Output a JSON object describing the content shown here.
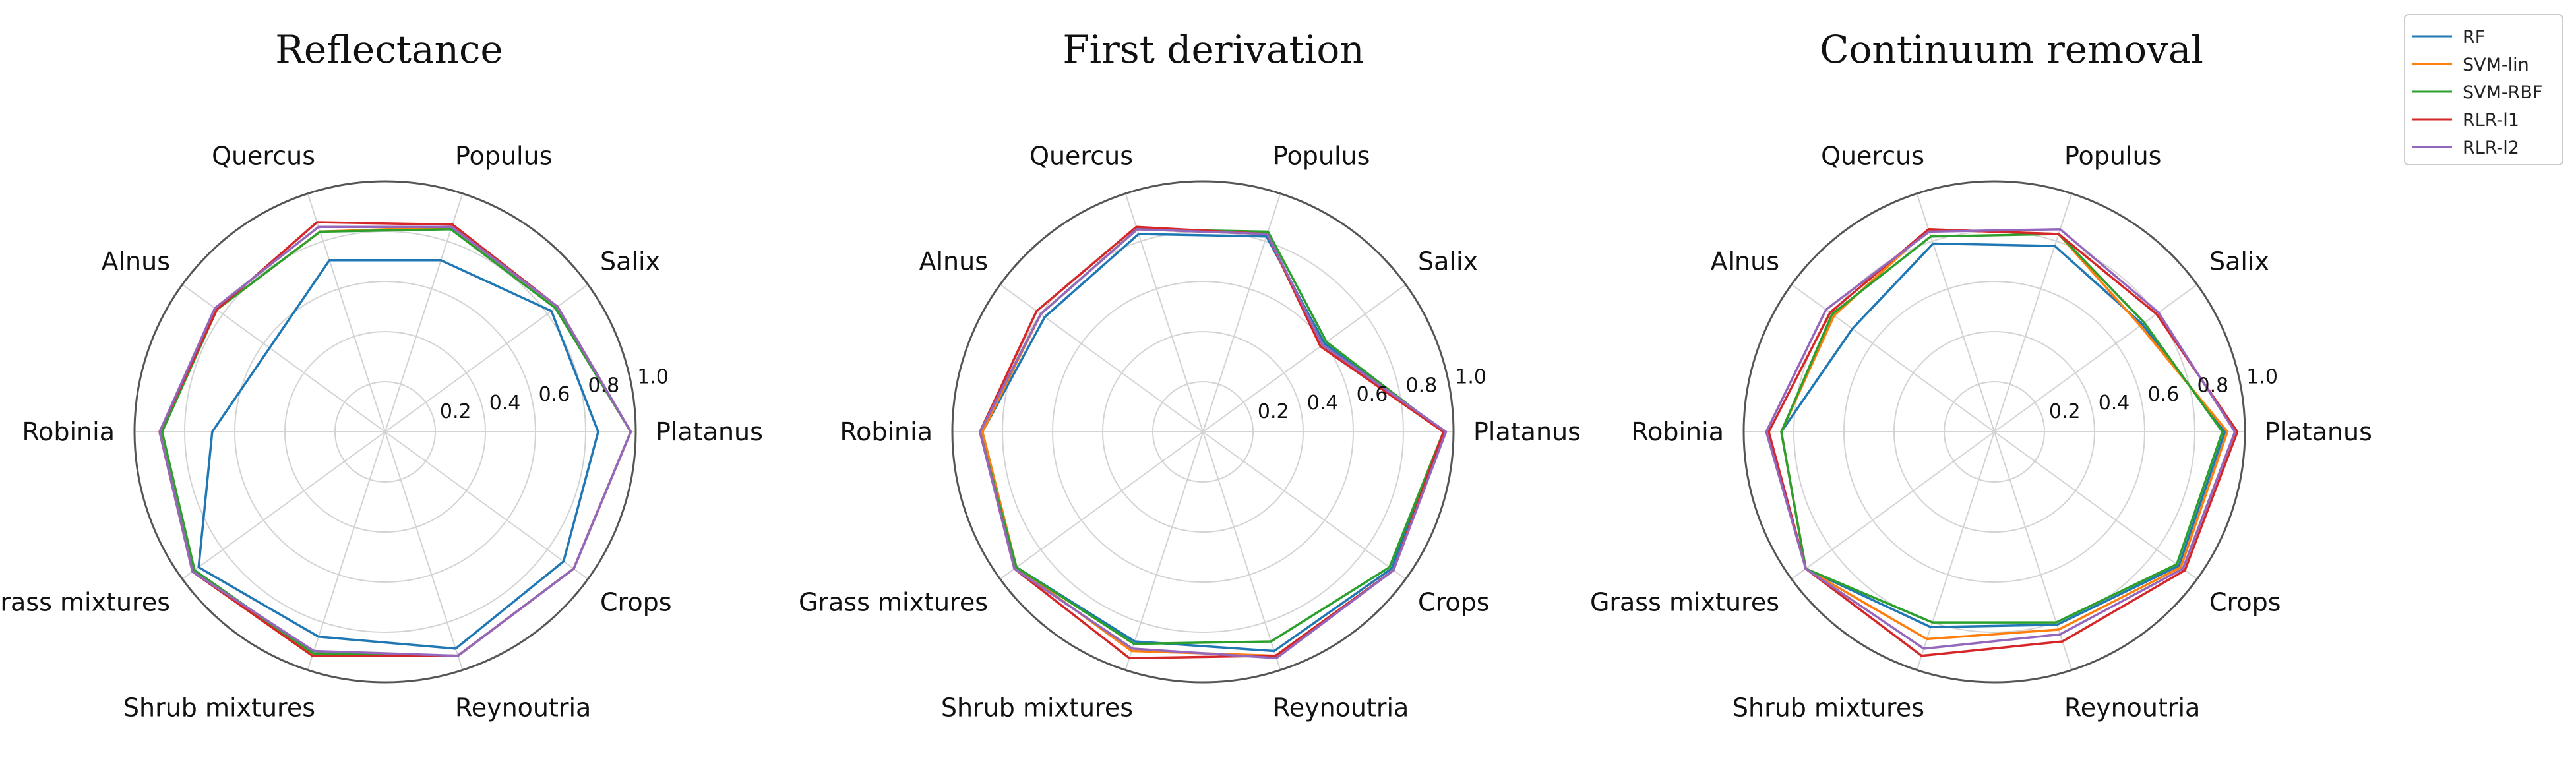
{
  "legend": {
    "position": "top-right",
    "entries": [
      {
        "label": "RF",
        "color": "#1f77b4"
      },
      {
        "label": "SVM-lin",
        "color": "#ff7f0e"
      },
      {
        "label": "SVM-RBF",
        "color": "#2ca02c"
      },
      {
        "label": "RLR-l1",
        "color": "#d62728"
      },
      {
        "label": "RLR-l2",
        "color": "#9467bd"
      }
    ]
  },
  "chart_data": [
    {
      "type": "radar",
      "title": "Reflectance",
      "categories": [
        "Platanus",
        "Salix",
        "Populus",
        "Quercus",
        "Alnus",
        "Robinia",
        "Grass mixtures",
        "Shrub mixtures",
        "Reynoutria",
        "Crops"
      ],
      "rlim": [
        0,
        1.0
      ],
      "rticks": [
        0.2,
        0.4,
        0.6,
        0.8,
        1.0
      ],
      "rtick_labels": [
        "0.2",
        "0.4",
        "0.6",
        "0.8",
        "1.0"
      ],
      "grid": true,
      "series": [
        {
          "name": "RF",
          "color": "#1f77b4",
          "values": [
            0.85,
            0.82,
            0.72,
            0.72,
            0.57,
            0.69,
            0.92,
            0.86,
            0.91,
            0.88
          ]
        },
        {
          "name": "SVM-lin",
          "color": "#ff7f0e",
          "values": [
            0.98,
            0.85,
            0.86,
            0.84,
            0.83,
            0.9,
            0.95,
            0.93,
            0.94,
            0.93
          ]
        },
        {
          "name": "SVM-RBF",
          "color": "#2ca02c",
          "values": [
            0.98,
            0.84,
            0.85,
            0.84,
            0.83,
            0.89,
            0.94,
            0.93,
            0.94,
            0.93
          ]
        },
        {
          "name": "RLR-l1",
          "color": "#d62728",
          "values": [
            0.98,
            0.85,
            0.87,
            0.88,
            0.83,
            0.9,
            0.95,
            0.94,
            0.94,
            0.93
          ]
        },
        {
          "name": "RLR-l2",
          "color": "#9467bd",
          "values": [
            0.98,
            0.85,
            0.86,
            0.86,
            0.84,
            0.9,
            0.95,
            0.92,
            0.94,
            0.93
          ]
        }
      ]
    },
    {
      "type": "radar",
      "title": "First derivation",
      "categories": [
        "Platanus",
        "Salix",
        "Populus",
        "Quercus",
        "Alnus",
        "Robinia",
        "Grass mixtures",
        "Shrub mixtures",
        "Reynoutria",
        "Crops"
      ],
      "rlim": [
        0,
        1.0
      ],
      "rticks": [
        0.2,
        0.4,
        0.6,
        0.8,
        1.0
      ],
      "rtick_labels": [
        "0.2",
        "0.4",
        "0.6",
        "0.8",
        "1.0"
      ],
      "grid": true,
      "series": [
        {
          "name": "RF",
          "color": "#1f77b4",
          "values": [
            0.96,
            0.6,
            0.82,
            0.83,
            0.78,
            0.88,
            0.92,
            0.88,
            0.92,
            0.93
          ]
        },
        {
          "name": "SVM-lin",
          "color": "#ff7f0e",
          "values": [
            0.96,
            0.58,
            0.83,
            0.85,
            0.8,
            0.88,
            0.92,
            0.92,
            0.94,
            0.94
          ]
        },
        {
          "name": "SVM-RBF",
          "color": "#2ca02c",
          "values": [
            0.96,
            0.61,
            0.84,
            0.85,
            0.8,
            0.89,
            0.92,
            0.89,
            0.88,
            0.92
          ]
        },
        {
          "name": "RLR-l1",
          "color": "#d62728",
          "values": [
            0.96,
            0.58,
            0.83,
            0.86,
            0.82,
            0.89,
            0.93,
            0.95,
            0.94,
            0.94
          ]
        },
        {
          "name": "RLR-l2",
          "color": "#9467bd",
          "values": [
            0.97,
            0.59,
            0.83,
            0.85,
            0.8,
            0.89,
            0.93,
            0.91,
            0.95,
            0.94
          ]
        }
      ]
    },
    {
      "type": "radar",
      "title": "Continuum removal",
      "categories": [
        "Platanus",
        "Salix",
        "Populus",
        "Quercus",
        "Alnus",
        "Robinia",
        "Grass mixtures",
        "Shrub mixtures",
        "Reynoutria",
        "Crops"
      ],
      "rlim": [
        0,
        1.0
      ],
      "rticks": [
        0.2,
        0.4,
        0.6,
        0.8,
        1.0
      ],
      "rtick_labels": [
        "0.2",
        "0.4",
        "0.6",
        "0.8",
        "1.0"
      ],
      "grid": true,
      "series": [
        {
          "name": "RF",
          "color": "#1f77b4",
          "values": [
            0.92,
            0.73,
            0.78,
            0.79,
            0.7,
            0.85,
            0.93,
            0.82,
            0.81,
            0.91
          ]
        },
        {
          "name": "SVM-lin",
          "color": "#ff7f0e",
          "values": [
            0.93,
            0.72,
            0.83,
            0.85,
            0.79,
            0.85,
            0.93,
            0.87,
            0.83,
            0.92
          ]
        },
        {
          "name": "SVM-RBF",
          "color": "#2ca02c",
          "values": [
            0.91,
            0.74,
            0.83,
            0.82,
            0.8,
            0.85,
            0.93,
            0.8,
            0.8,
            0.9
          ]
        },
        {
          "name": "RLR-l1",
          "color": "#d62728",
          "values": [
            0.97,
            0.8,
            0.83,
            0.85,
            0.81,
            0.9,
            0.93,
            0.94,
            0.88,
            0.94
          ]
        },
        {
          "name": "RLR-l2",
          "color": "#9467bd",
          "values": [
            0.96,
            0.81,
            0.85,
            0.84,
            0.83,
            0.91,
            0.93,
            0.91,
            0.85,
            0.93
          ]
        }
      ]
    }
  ]
}
